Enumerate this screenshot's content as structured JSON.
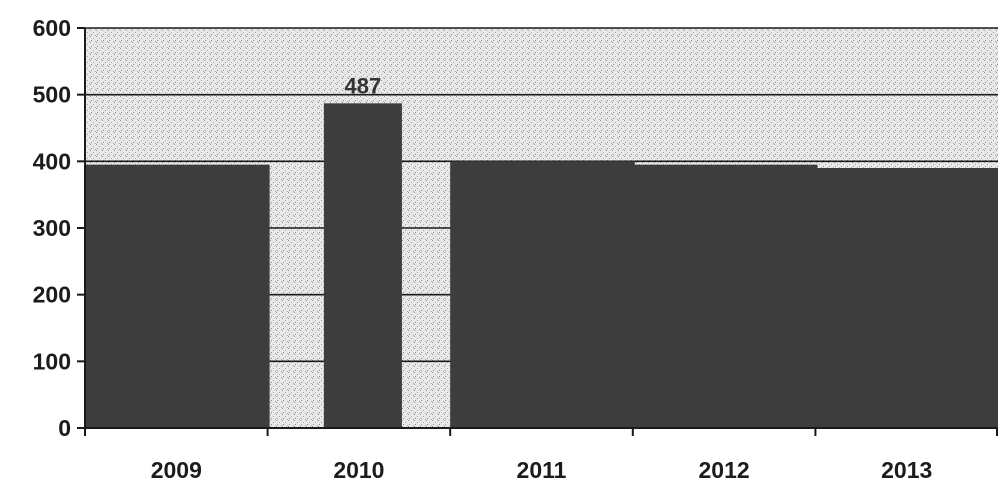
{
  "chart_data": {
    "type": "bar",
    "title": "",
    "xlabel": "",
    "ylabel": "",
    "categories": [
      "2009",
      "2010",
      "2011",
      "2012",
      "2013"
    ],
    "values": [
      395,
      487,
      400,
      395,
      390
    ],
    "data_labels": {
      "2010": "487"
    },
    "ylim": [
      0,
      600
    ],
    "yticks": [
      "0",
      "100",
      "200",
      "300",
      "400",
      "500",
      "600"
    ],
    "grid": true,
    "legend": "none",
    "colors": {
      "bar": "#3d3d3d",
      "background": "#e6e6e6",
      "axis": "#1a1a1a",
      "gridline": "#1a1a1a"
    }
  }
}
